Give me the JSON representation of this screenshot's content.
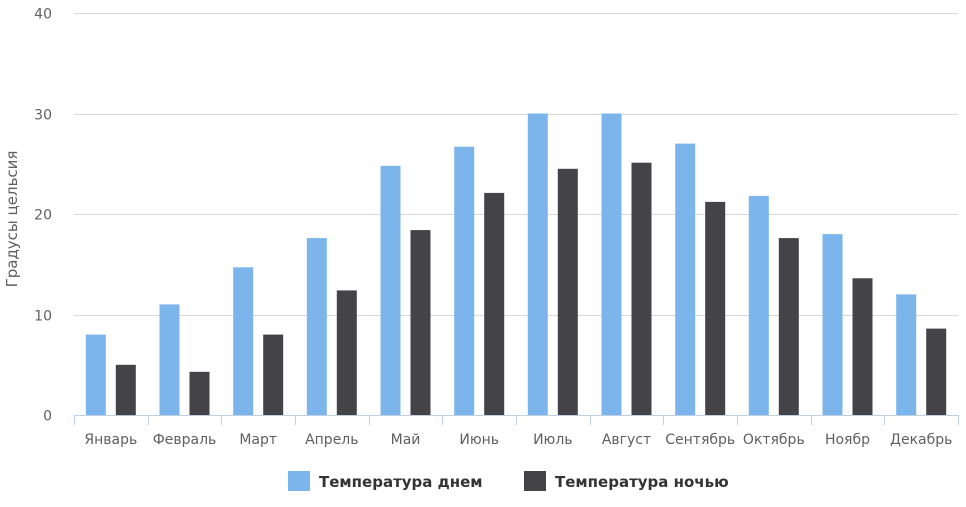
{
  "chart_data": {
    "type": "bar",
    "title": "",
    "xlabel": "",
    "ylabel": "Градусы цельсия",
    "ylim": [
      0,
      40
    ],
    "yticks": [
      0,
      10,
      20,
      30,
      40
    ],
    "grid": true,
    "legend_position": "bottom-center",
    "categories": [
      "Январь",
      "Февраль",
      "Март",
      "Апрель",
      "Май",
      "Июнь",
      "Июль",
      "Август",
      "Сентябрь",
      "Октябрь",
      "Ноябр",
      "Декабрь"
    ],
    "series": [
      {
        "name": "Температура днем",
        "color": "#7cb5ec",
        "values": [
          8,
          11,
          14.7,
          17.6,
          24.8,
          26.7,
          30,
          30,
          27,
          21.8,
          18,
          12
        ]
      },
      {
        "name": "Температура ночью",
        "color": "#434348",
        "values": [
          5,
          4.3,
          8,
          12.4,
          18.4,
          22.1,
          24.5,
          25.1,
          21.2,
          17.6,
          13.6,
          8.6
        ]
      }
    ]
  }
}
